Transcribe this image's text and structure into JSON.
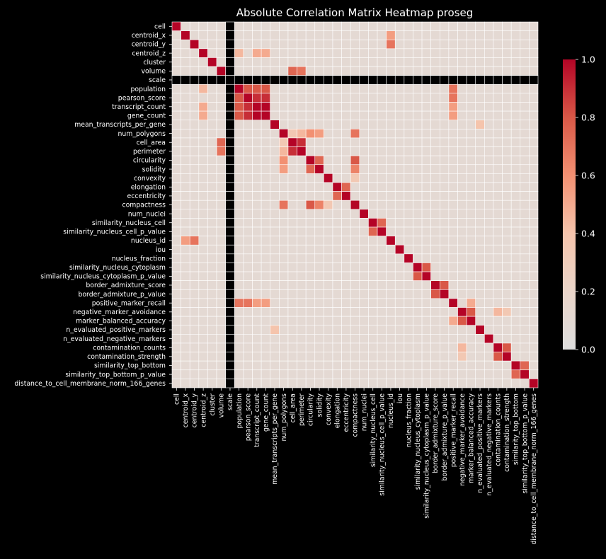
{
  "chart_data": {
    "type": "heatmap",
    "title": "Absolute Correlation Matrix Heatmap proseg",
    "xlabel": "",
    "ylabel": "",
    "variables": [
      "cell",
      "centroid_x",
      "centroid_y",
      "centroid_z",
      "cluster",
      "volume",
      "scale",
      "population",
      "pearson_score",
      "transcript_count",
      "gene_count",
      "mean_transcripts_per_gene",
      "num_polygons",
      "cell_area",
      "perimeter",
      "circularity",
      "solidity",
      "convexity",
      "elongation",
      "eccentricity",
      "compactness",
      "num_nuclei",
      "similarity_nucleus_cell",
      "similarity_nucleus_cell_p_value",
      "nucleus_id",
      "iou",
      "nucleus_fraction",
      "similarity_nucleus_cytoplasm",
      "similarity_nucleus_cytoplasm_p_value",
      "border_admixture_score",
      "border_admixture_p_value",
      "positive_marker_recall",
      "negative_marker_avoidance",
      "marker_balanced_accuracy",
      "n_evaluated_positive_markers",
      "n_evaluated_negative_markers",
      "contamination_counts",
      "contamination_strength",
      "similarity_top_bottom",
      "similarity_top_bottom_p_value",
      "distance_to_cell_membrane_norm_166_genes"
    ],
    "missing_variables": [
      "scale"
    ],
    "value_range": [
      0,
      1
    ],
    "background_value": 0.1,
    "strong_pairs": [
      [
        "centroid_x",
        "nucleus_id",
        0.55
      ],
      [
        "centroid_y",
        "nucleus_id",
        0.7
      ],
      [
        "centroid_z",
        "population",
        0.45
      ],
      [
        "centroid_z",
        "transcript_count",
        0.5
      ],
      [
        "centroid_z",
        "gene_count",
        0.5
      ],
      [
        "volume",
        "cell_area",
        0.75
      ],
      [
        "volume",
        "perimeter",
        0.7
      ],
      [
        "population",
        "pearson_score",
        0.8
      ],
      [
        "population",
        "transcript_count",
        0.8
      ],
      [
        "population",
        "gene_count",
        0.8
      ],
      [
        "population",
        "positive_marker_recall",
        0.7
      ],
      [
        "pearson_score",
        "transcript_count",
        0.9
      ],
      [
        "pearson_score",
        "gene_count",
        0.9
      ],
      [
        "pearson_score",
        "positive_marker_recall",
        0.7
      ],
      [
        "transcript_count",
        "gene_count",
        1.0
      ],
      [
        "transcript_count",
        "positive_marker_recall",
        0.55
      ],
      [
        "gene_count",
        "positive_marker_recall",
        0.55
      ],
      [
        "mean_transcripts_per_gene",
        "n_evaluated_positive_markers",
        0.4
      ],
      [
        "num_polygons",
        "cell_area",
        0.35
      ],
      [
        "num_polygons",
        "perimeter",
        0.45
      ],
      [
        "num_polygons",
        "circularity",
        0.6
      ],
      [
        "num_polygons",
        "solidity",
        0.55
      ],
      [
        "num_polygons",
        "compactness",
        0.7
      ],
      [
        "cell_area",
        "perimeter",
        0.9
      ],
      [
        "circularity",
        "solidity",
        0.75
      ],
      [
        "circularity",
        "compactness",
        0.8
      ],
      [
        "solidity",
        "compactness",
        0.65
      ],
      [
        "convexity",
        "compactness",
        0.35
      ],
      [
        "elongation",
        "eccentricity",
        0.75
      ],
      [
        "similarity_nucleus_cell",
        "similarity_nucleus_cell_p_value",
        0.75
      ],
      [
        "similarity_nucleus_cytoplasm",
        "similarity_nucleus_cytoplasm_p_value",
        0.8
      ],
      [
        "border_admixture_score",
        "border_admixture_p_value",
        0.8
      ],
      [
        "negative_marker_avoidance",
        "marker_balanced_accuracy",
        0.8
      ],
      [
        "negative_marker_avoidance",
        "contamination_counts",
        0.45
      ],
      [
        "negative_marker_avoidance",
        "contamination_strength",
        0.35
      ],
      [
        "positive_marker_recall",
        "marker_balanced_accuracy",
        0.5
      ],
      [
        "contamination_counts",
        "contamination_strength",
        0.8
      ],
      [
        "similarity_top_bottom",
        "similarity_top_bottom_p_value",
        0.75
      ]
    ],
    "colormap": "coolwarm (upper half)",
    "colorbar_ticks": [
      "0.0",
      "0.2",
      "0.4",
      "0.6",
      "0.8",
      "1.0"
    ],
    "missing_color": "#000000",
    "grid_line_color": "#ffffff",
    "background_color": "#000000"
  }
}
